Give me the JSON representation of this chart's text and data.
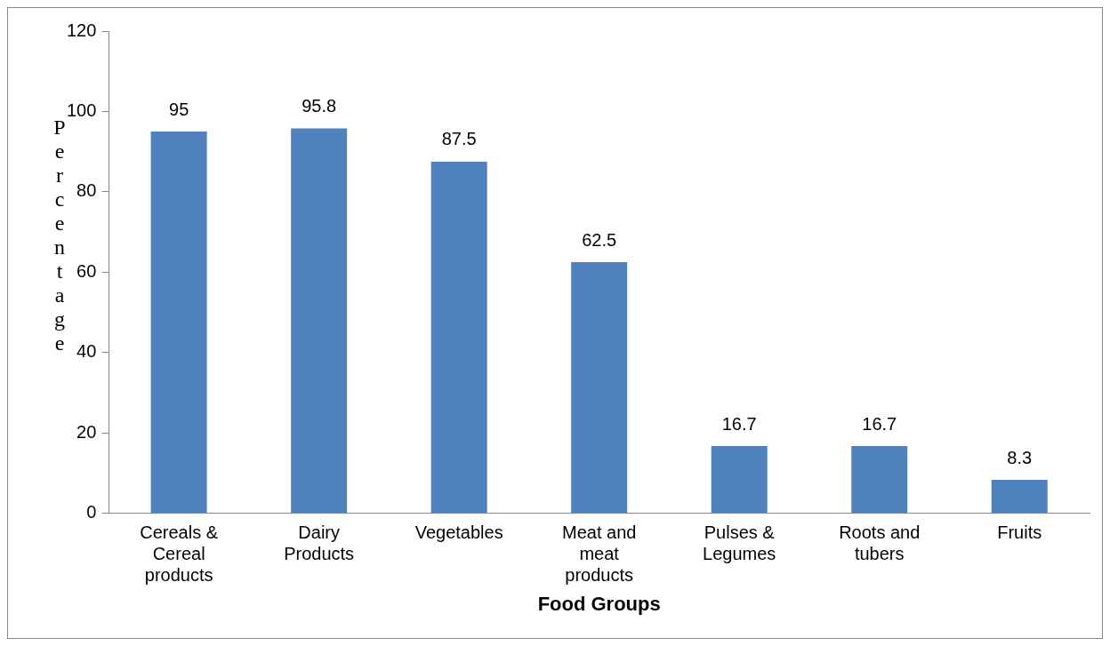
{
  "chart_data": {
    "type": "bar",
    "xlabel": "Food Groups",
    "ylabel": "Percentage",
    "categories": [
      "Cereals & Cereal products",
      "Dairy Products",
      "Vegetables",
      "Meat and meat products",
      "Pulses & Legumes",
      "Roots and tubers",
      "Fruits"
    ],
    "values": [
      95,
      95.8,
      87.5,
      62.5,
      16.7,
      16.7,
      8.3
    ],
    "color": "#4f81bd",
    "ylim": [
      0,
      120
    ],
    "yticks": [
      0,
      20,
      40,
      60,
      80,
      100,
      120
    ],
    "data_labels": true,
    "grid": false,
    "legend": false
  }
}
